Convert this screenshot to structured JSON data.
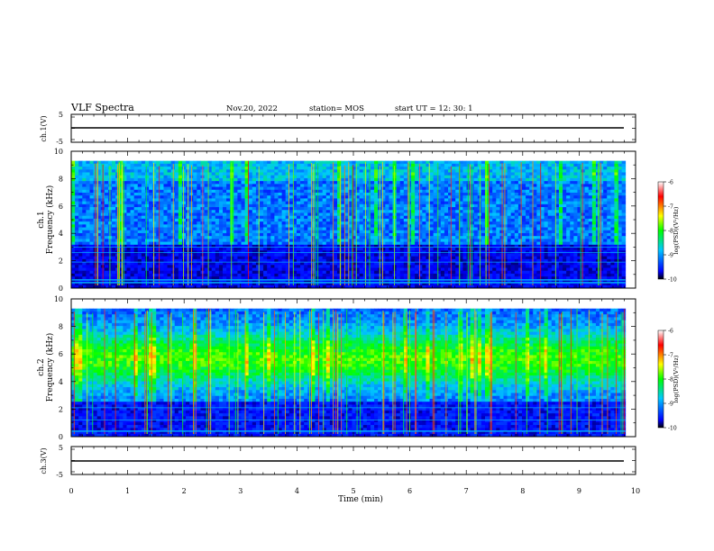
{
  "header": {
    "title": "VLF Spectra",
    "date": "Nov.20, 2022",
    "station": "station= MOS",
    "start": "start  UT =   12: 30: 1"
  },
  "chart_data": [
    {
      "type": "line",
      "panel": "ch1-waveform",
      "ylabel": "ch.1(V)",
      "y_ticks": [
        "5",
        "-5"
      ],
      "ylim": [
        -5,
        5
      ],
      "x": [
        0,
        10
      ],
      "values": [
        0,
        0
      ],
      "color": "#000000"
    },
    {
      "type": "heatmap",
      "panel": "ch1-spectrogram",
      "ylabel": [
        "ch.1",
        "Frequency (kHz)"
      ],
      "y_ticks": [
        "0",
        "2",
        "4",
        "6",
        "8",
        "10"
      ],
      "ylim": [
        0,
        10
      ],
      "xlim": [
        0,
        9.82
      ],
      "noise_top_khz": 9.3,
      "colorbar": {
        "label": "log(PSD)(V²/Hz)",
        "ticks": [
          "-6",
          "-7",
          "-8",
          "-9",
          "-10"
        ],
        "range": [
          -10,
          -6
        ],
        "colormap": [
          "#000000",
          "#0000ff",
          "#00c8ff",
          "#00ff00",
          "#ffff00",
          "#ff0000",
          "#ffffff"
        ]
      }
    },
    {
      "type": "heatmap",
      "panel": "ch2-spectrogram",
      "ylabel": [
        "ch.2",
        "Frequency (kHz)"
      ],
      "y_ticks": [
        "0",
        "2",
        "4",
        "6",
        "8",
        "10"
      ],
      "ylim": [
        0,
        10
      ],
      "xlim": [
        0,
        9.82
      ],
      "noise_top_khz": 9.3,
      "colorbar": {
        "label": "log(PSD)(V²/Hz)",
        "ticks": [
          "-6",
          "-7",
          "-8",
          "-9",
          "-10"
        ],
        "range": [
          -10,
          -6
        ],
        "colormap": [
          "#000000",
          "#0000ff",
          "#00c8ff",
          "#00ff00",
          "#ffff00",
          "#ff0000",
          "#ffffff"
        ]
      }
    },
    {
      "type": "line",
      "panel": "ch3-waveform",
      "ylabel": "ch.3(V)",
      "y_ticks": [
        "5",
        "-5"
      ],
      "ylim": [
        -5,
        5
      ],
      "x": [
        0,
        10
      ],
      "values": [
        0,
        0
      ],
      "color": "#000000"
    }
  ],
  "xaxis": {
    "label": "Time (min)",
    "ticks": [
      "0",
      "1",
      "2",
      "3",
      "4",
      "5",
      "6",
      "7",
      "8",
      "9",
      "10"
    ],
    "xlim": [
      0,
      10
    ]
  }
}
